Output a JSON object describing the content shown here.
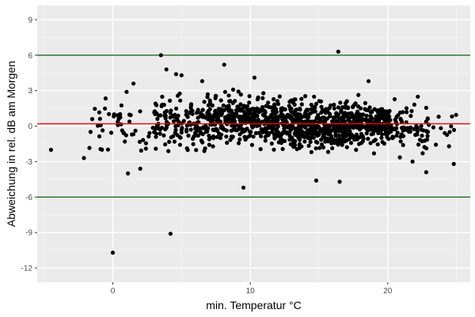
{
  "colors": {
    "panel": "#ebebeb",
    "grid_major": "#ffffff",
    "grid_minor": "#f5f5f5",
    "point": "#000000",
    "ref_line_mean": "#ff0000",
    "ref_line_limits": "#1f6b1f"
  },
  "chart_data": {
    "type": "scatter",
    "title": "",
    "xlabel": "min. Temperatur °C",
    "ylabel": "Abweichung in rel. dB am Morgen",
    "xlim": [
      -5.5,
      26
    ],
    "ylim": [
      -13.2,
      10.2
    ],
    "x_ticks": [
      0,
      10,
      20
    ],
    "y_ticks": [
      -12,
      -9,
      -6,
      -3,
      0,
      3,
      6,
      9
    ],
    "x_tick_labels": [
      "0",
      "10",
      "20"
    ],
    "y_tick_labels": [
      "-12",
      "-9",
      "-6",
      "-3",
      "0",
      "3",
      "6",
      "9"
    ],
    "grid": true,
    "hlines": [
      {
        "y": 6.0,
        "color": "#1f6b1f"
      },
      {
        "y": 0.2,
        "color": "#ff0000"
      },
      {
        "y": -6.0,
        "color": "#1f6b1f"
      }
    ],
    "outliers": [
      {
        "x": -4.5,
        "y": -2.0
      },
      {
        "x": 0.0,
        "y": -10.7
      },
      {
        "x": 3.5,
        "y": 6.0
      },
      {
        "x": 3.9,
        "y": 4.8
      },
      {
        "x": 4.2,
        "y": -9.1
      },
      {
        "x": 9.5,
        "y": -5.2
      },
      {
        "x": 8.1,
        "y": 5.2
      },
      {
        "x": 16.4,
        "y": 6.3
      },
      {
        "x": 14.8,
        "y": -4.6
      },
      {
        "x": 16.5,
        "y": -4.7
      },
      {
        "x": 24.8,
        "y": -3.2
      },
      {
        "x": 24.5,
        "y": -0.5
      },
      {
        "x": 1.1,
        "y": -4.0
      },
      {
        "x": 2.0,
        "y": -3.6
      },
      {
        "x": 0.1,
        "y": 1.0
      },
      {
        "x": 1.5,
        "y": 3.6
      },
      {
        "x": 1.0,
        "y": 2.9
      },
      {
        "x": -1.5,
        "y": 0.6
      },
      {
        "x": -2.1,
        "y": -2.7
      },
      {
        "x": 5.0,
        "y": 4.3
      },
      {
        "x": 4.6,
        "y": 4.4
      },
      {
        "x": 6.5,
        "y": 3.8
      },
      {
        "x": 10.3,
        "y": 4.1
      },
      {
        "x": 18.6,
        "y": 3.8
      },
      {
        "x": 23.7,
        "y": 0.8
      },
      {
        "x": 22.8,
        "y": -3.9
      },
      {
        "x": 21.8,
        "y": -3.0
      },
      {
        "x": 19.0,
        "y": -2.3
      }
    ],
    "clusters": [
      {
        "x_from": -2.2,
        "x_to": 3.0,
        "y_center": -0.2,
        "y_spread": 1.6,
        "count": 45
      },
      {
        "x_from": 3.0,
        "x_to": 7.0,
        "y_center": 0.3,
        "y_spread": 1.5,
        "count": 150
      },
      {
        "x_from": 7.0,
        "x_to": 12.0,
        "y_center": 0.5,
        "y_spread": 1.4,
        "count": 350
      },
      {
        "x_from": 12.0,
        "x_to": 17.0,
        "y_center": 0.1,
        "y_spread": 1.4,
        "count": 420
      },
      {
        "x_from": 17.0,
        "x_to": 20.0,
        "y_center": 0.2,
        "y_spread": 1.2,
        "count": 230
      },
      {
        "x_from": 20.0,
        "x_to": 23.0,
        "y_center": -0.2,
        "y_spread": 1.4,
        "count": 90
      },
      {
        "x_from": 23.0,
        "x_to": 25.0,
        "y_center": -0.3,
        "y_spread": 1.1,
        "count": 10
      }
    ]
  }
}
